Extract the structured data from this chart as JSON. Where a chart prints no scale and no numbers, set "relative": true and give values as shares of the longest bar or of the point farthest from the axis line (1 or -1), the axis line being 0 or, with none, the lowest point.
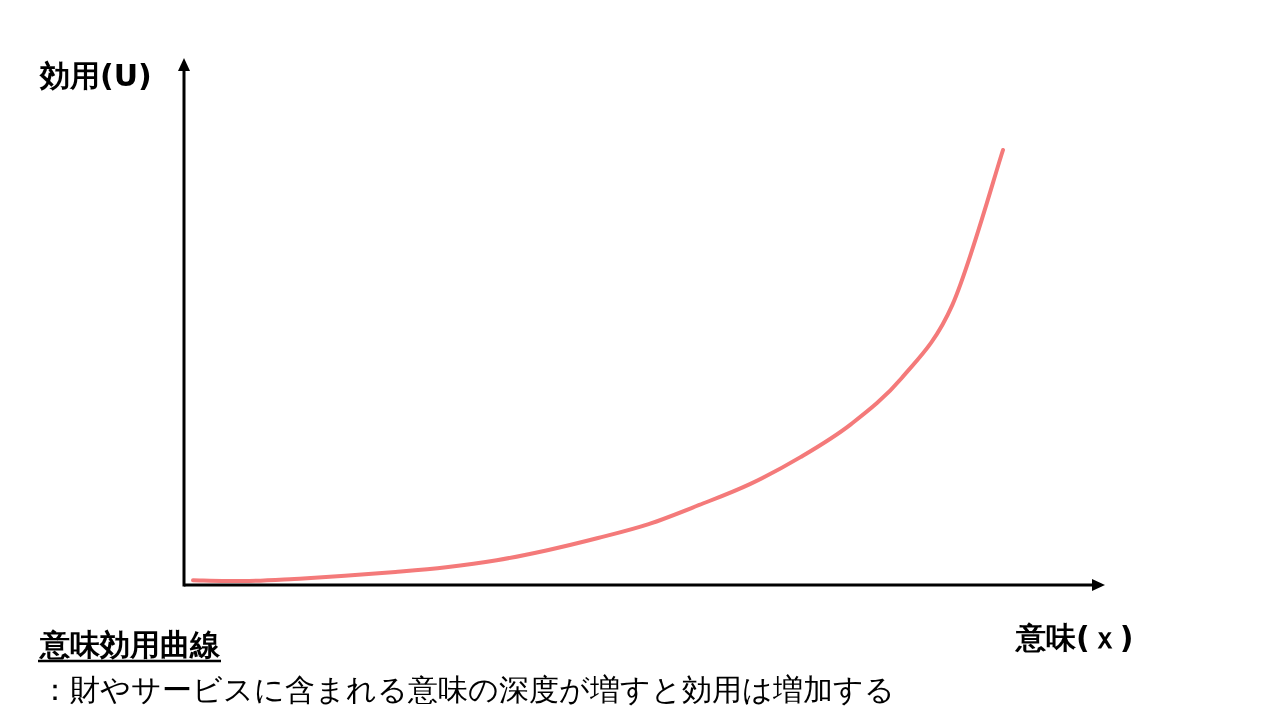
{
  "chart_data": {
    "type": "line",
    "relative": true,
    "title": "意味効用曲線",
    "xlabel": "意味(ｘ)",
    "ylabel": "効用(U)",
    "annotations": [
      "：財やサービスに含まれる意味の深度が増すと効用は増加する"
    ],
    "categories": [
      null,
      null,
      null,
      null,
      null,
      null,
      null,
      null,
      null,
      null,
      null,
      null,
      null,
      null,
      null,
      null,
      null
    ],
    "series": [
      {
        "color": "#f47a7a",
        "values": [
          0.011,
          0.009,
          0.014,
          0.021,
          0.03,
          0.041,
          0.057,
          0.08,
          0.108,
          0.14,
          0.184,
          0.232,
          0.294,
          0.37,
          0.476,
          0.644,
          1
        ]
      }
    ],
    "marker": "none",
    "line_style": "solid",
    "grid": false
  }
}
